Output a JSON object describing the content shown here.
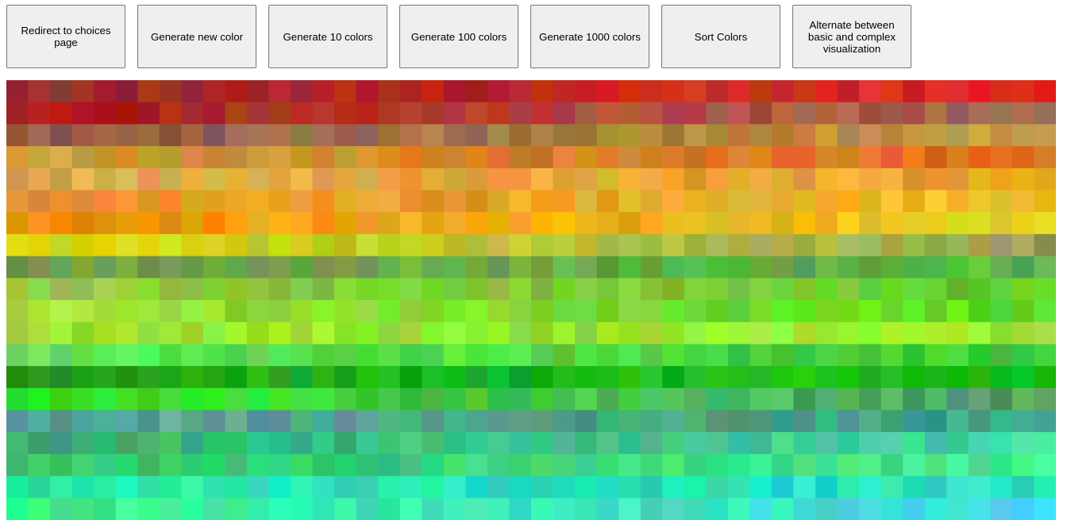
{
  "toolbar": {
    "buttons": [
      {
        "name": "redirect-choices-button",
        "label": "Redirect to choices page"
      },
      {
        "name": "generate-new-color-button",
        "label": "Generate new color"
      },
      {
        "name": "generate-10-colors-button",
        "label": "Generate 10 colors"
      },
      {
        "name": "generate-100-colors-button",
        "label": "Generate 100 colors"
      },
      {
        "name": "generate-1000-colors-button",
        "label": "Generate 1000 colors"
      },
      {
        "name": "sort-colors-button",
        "label": "Sort Colors"
      },
      {
        "name": "alternate-visualization-button",
        "label": "Alternate between basic and complex visualization"
      }
    ]
  },
  "swatches": {
    "bands": [
      {
        "from": "#8e2a2a",
        "to": "#e8261e"
      },
      {
        "from": "#b01f10",
        "to": "#a86a58"
      },
      {
        "from": "#8a5a48",
        "to": "#c8a040"
      },
      {
        "from": "#c89a3a",
        "to": "#e06a20"
      },
      {
        "from": "#d8a848",
        "to": "#f0a828"
      },
      {
        "from": "#e89038",
        "to": "#f0c020"
      },
      {
        "from": "#f08a10",
        "to": "#e8d020"
      },
      {
        "from": "#d8e010",
        "to": "#9aa060"
      },
      {
        "from": "#78a048",
        "to": "#58b848"
      },
      {
        "from": "#98c840",
        "to": "#68c830"
      },
      {
        "from": "#a8e038",
        "to": "#58e028"
      },
      {
        "from": "#98e030",
        "to": "#98f038"
      },
      {
        "from": "#68e858",
        "to": "#38c830"
      },
      {
        "from": "#20a020",
        "to": "#18c818"
      },
      {
        "from": "#30e820",
        "to": "#58a070"
      },
      {
        "from": "#60a090",
        "to": "#38a880"
      },
      {
        "from": "#3aa870",
        "to": "#40d8a0"
      },
      {
        "from": "#30c070",
        "to": "#40e890"
      },
      {
        "from": "#28e8a8",
        "to": "#28d8c8"
      },
      {
        "from": "#30f088",
        "to": "#48e0f0"
      }
    ],
    "columns": 48
  }
}
